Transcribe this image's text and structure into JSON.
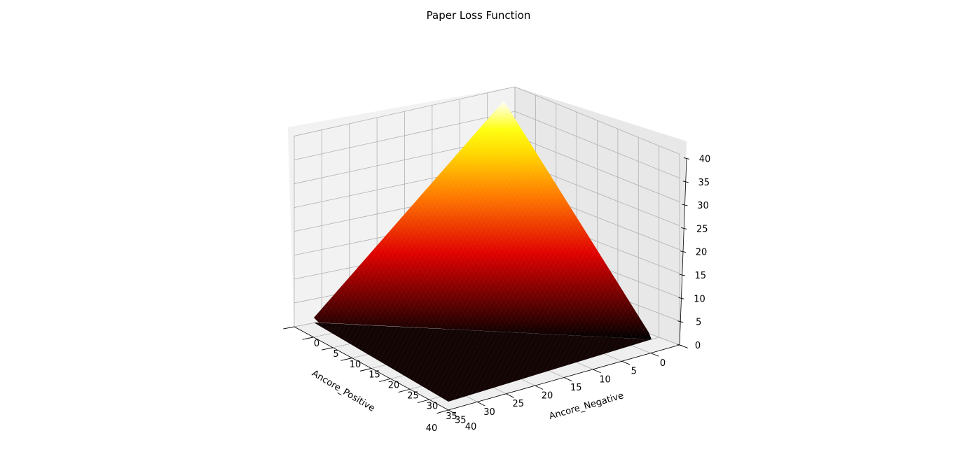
{
  "chart_data": {
    "type": "surface",
    "title": "Paper Loss Function",
    "xlabel": "Ancore_Positive",
    "ylabel": "Ancore_Negative",
    "zlabel": "",
    "xlim": [
      0,
      40
    ],
    "ylim": [
      0,
      40
    ],
    "zlim": [
      0,
      40
    ],
    "x_ticks": [
      "40",
      "35",
      "30",
      "25",
      "20",
      "15",
      "10",
      "5",
      "0"
    ],
    "y_ticks": [
      "0",
      "5",
      "10",
      "15",
      "20",
      "25",
      "30",
      "35",
      "40"
    ],
    "z_ticks": [
      "0",
      "5",
      "10",
      "15",
      "20",
      "25",
      "30",
      "35",
      "40"
    ],
    "grid": true,
    "colormap": "hot",
    "surface_description_points": [
      {
        "x": 0,
        "y": 0,
        "z": 40
      },
      {
        "x": 40,
        "y": 0,
        "z": 0
      },
      {
        "x": 0,
        "y": 40,
        "z": 0
      },
      {
        "x": 40,
        "y": 40,
        "z": 0
      }
    ]
  }
}
